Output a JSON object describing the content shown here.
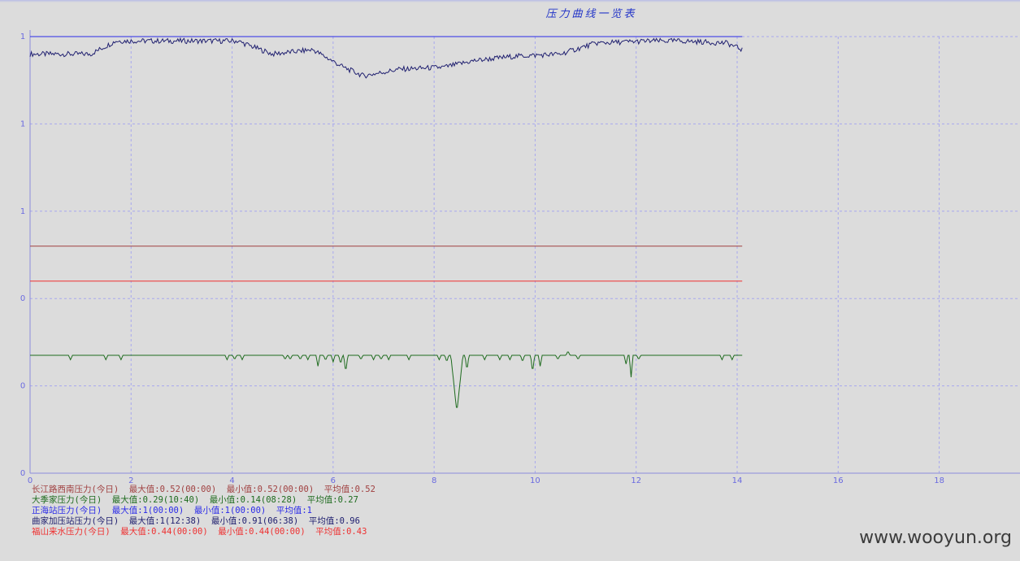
{
  "chart_data": {
    "type": "line",
    "title": "压力曲线一览表",
    "xlim": [
      0,
      19.6
    ],
    "x_ticks": [
      "0",
      "2",
      "4",
      "6",
      "8",
      "10",
      "12",
      "14",
      "16",
      "18"
    ],
    "y_tick_labels": [
      "0",
      "0",
      "0",
      "1",
      "1",
      "1"
    ],
    "grid": true,
    "legend_position": "bottom-left",
    "series": [
      {
        "name": "长江路西南压力(今日)",
        "color": "#a04040",
        "flat": true,
        "level": 0.52,
        "legend_text": "长江路西南压力(今日)  最大值:0.52(00:00)  最小值:0.52(00:00)  平均值:0.52"
      },
      {
        "name": "大季家压力(今日)",
        "color": "#1e6b1e",
        "level": 0.27,
        "legend_text": "大季家压力(今日)  最大值:0.29(10:40)  最小值:0.14(08:28)  平均值:0.27",
        "dips": [
          [
            0.8,
            0.01
          ],
          [
            1.5,
            0.01
          ],
          [
            1.8,
            0.01
          ],
          [
            3.9,
            0.01
          ],
          [
            4.05,
            0.01
          ],
          [
            4.2,
            0.01
          ],
          [
            5.05,
            0.01
          ],
          [
            5.15,
            0.01
          ],
          [
            5.35,
            0.01
          ],
          [
            5.5,
            0.01
          ],
          [
            5.7,
            0.025
          ],
          [
            5.85,
            0.012
          ],
          [
            6.0,
            0.015
          ],
          [
            6.15,
            0.02
          ],
          [
            6.25,
            0.04
          ],
          [
            6.55,
            0.01
          ],
          [
            6.8,
            0.01
          ],
          [
            6.95,
            0.01
          ],
          [
            7.1,
            0.01
          ],
          [
            7.5,
            0.01
          ],
          [
            8.1,
            0.01
          ],
          [
            8.25,
            0.015
          ],
          [
            8.45,
            0.13
          ],
          [
            8.65,
            0.035
          ],
          [
            9.0,
            0.01
          ],
          [
            9.3,
            0.01
          ],
          [
            9.5,
            0.01
          ],
          [
            9.75,
            0.015
          ],
          [
            9.95,
            0.04
          ],
          [
            10.1,
            0.025
          ],
          [
            10.45,
            0.01
          ],
          [
            10.85,
            0.01
          ],
          [
            11.8,
            0.02
          ],
          [
            11.9,
            0.05
          ],
          [
            12.05,
            0.01
          ],
          [
            13.7,
            0.01
          ],
          [
            13.9,
            0.01
          ]
        ],
        "peaks": [
          [
            10.65,
            0.01
          ]
        ]
      },
      {
        "name": "正海站压力(今日)",
        "color": "#2a2ae8",
        "flat": true,
        "level": 1.0,
        "legend_text": "正海站压力(今日)  最大值:1(00:00)  最小值:1(00:00)  平均值:1"
      },
      {
        "name": "曲家加压站压力(今日)",
        "color": "#202070",
        "legend_text": "曲家加压站压力(今日)  最大值:1(12:38)  最小值:0.91(06:38)  平均值:0.96",
        "x": [
          0,
          1.2,
          1.7,
          4.1,
          4.8,
          5.6,
          6.2,
          6.6,
          7.3,
          8.2,
          8.8,
          9.6,
          10.5,
          11.2,
          12.3,
          12.9,
          13.8,
          14.1
        ],
        "y": [
          0.96,
          0.96,
          0.99,
          0.99,
          0.96,
          0.97,
          0.93,
          0.91,
          0.925,
          0.93,
          0.945,
          0.955,
          0.96,
          0.985,
          0.99,
          0.99,
          0.985,
          0.97
        ]
      },
      {
        "name": "福山来水压力(今日)",
        "color": "#ee3030",
        "flat": true,
        "level": 0.44,
        "legend_text": "福山来水压力(今日)  最大值:0.44(00:00)  最小值:0.44(00:00)  平均值:0.43"
      }
    ]
  },
  "watermark": "www.wooyun.org"
}
